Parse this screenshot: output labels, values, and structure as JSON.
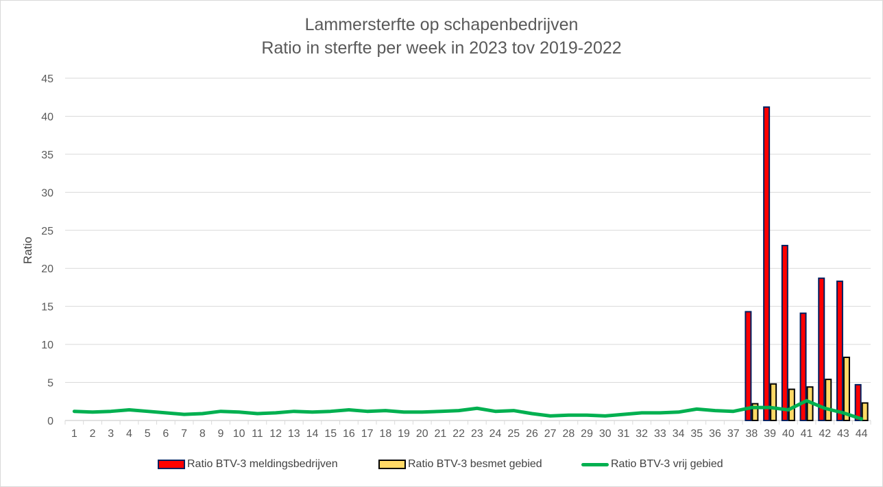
{
  "chart_data": {
    "type": "bar",
    "title": "Lammersterfte op schapenbedrijven",
    "subtitle": "Ratio in sterfte per week in 2023 tov 2019-2022",
    "xlabel": "",
    "ylabel": "Ratio",
    "ylim": [
      0,
      45
    ],
    "yticks": [
      0,
      5,
      10,
      15,
      20,
      25,
      30,
      35,
      40,
      45
    ],
    "grid": true,
    "legend_position": "bottom",
    "categories": [
      "1",
      "2",
      "3",
      "4",
      "5",
      "6",
      "7",
      "8",
      "9",
      "10",
      "11",
      "12",
      "13",
      "14",
      "15",
      "16",
      "17",
      "18",
      "19",
      "20",
      "21",
      "22",
      "23",
      "24",
      "25",
      "26",
      "27",
      "28",
      "29",
      "30",
      "31",
      "32",
      "33",
      "34",
      "35",
      "36",
      "37",
      "38",
      "39",
      "40",
      "41",
      "42",
      "43",
      "44"
    ],
    "series": [
      {
        "name": "Ratio BTV-3 meldingsbedrijven",
        "type": "bar",
        "color": "#ff0000",
        "border": "#002060",
        "values": [
          null,
          null,
          null,
          null,
          null,
          null,
          null,
          null,
          null,
          null,
          null,
          null,
          null,
          null,
          null,
          null,
          null,
          null,
          null,
          null,
          null,
          null,
          null,
          null,
          null,
          null,
          null,
          null,
          null,
          null,
          null,
          null,
          null,
          null,
          null,
          null,
          null,
          14.3,
          41.2,
          23.0,
          14.1,
          18.7,
          18.3,
          4.7
        ]
      },
      {
        "name": "Ratio BTV-3 besmet gebied",
        "type": "bar",
        "color": "#ffd966",
        "border": "#000000",
        "values": [
          null,
          null,
          null,
          null,
          null,
          null,
          null,
          null,
          null,
          null,
          null,
          null,
          null,
          null,
          null,
          null,
          null,
          null,
          null,
          null,
          null,
          null,
          null,
          null,
          null,
          null,
          null,
          null,
          null,
          null,
          null,
          null,
          null,
          null,
          null,
          null,
          null,
          2.2,
          4.8,
          4.1,
          4.4,
          5.4,
          8.3,
          2.3
        ]
      },
      {
        "name": "Ratio BTV-3 vrij gebied",
        "type": "line",
        "color": "#00b050",
        "values": [
          1.2,
          1.1,
          1.2,
          1.4,
          1.2,
          1.0,
          0.8,
          0.9,
          1.2,
          1.1,
          0.9,
          1.0,
          1.2,
          1.1,
          1.2,
          1.4,
          1.2,
          1.3,
          1.1,
          1.1,
          1.2,
          1.3,
          1.6,
          1.2,
          1.3,
          0.9,
          0.6,
          0.7,
          0.7,
          0.6,
          0.8,
          1.0,
          1.0,
          1.1,
          1.5,
          1.3,
          1.2,
          1.7,
          1.7,
          1.4,
          2.6,
          1.6,
          1.0,
          0.2
        ]
      }
    ]
  },
  "legend": {
    "items": [
      {
        "label": "Ratio BTV-3 meldingsbedrijven"
      },
      {
        "label": "Ratio BTV-3 besmet gebied"
      },
      {
        "label": "Ratio BTV-3 vrij gebied"
      }
    ]
  }
}
